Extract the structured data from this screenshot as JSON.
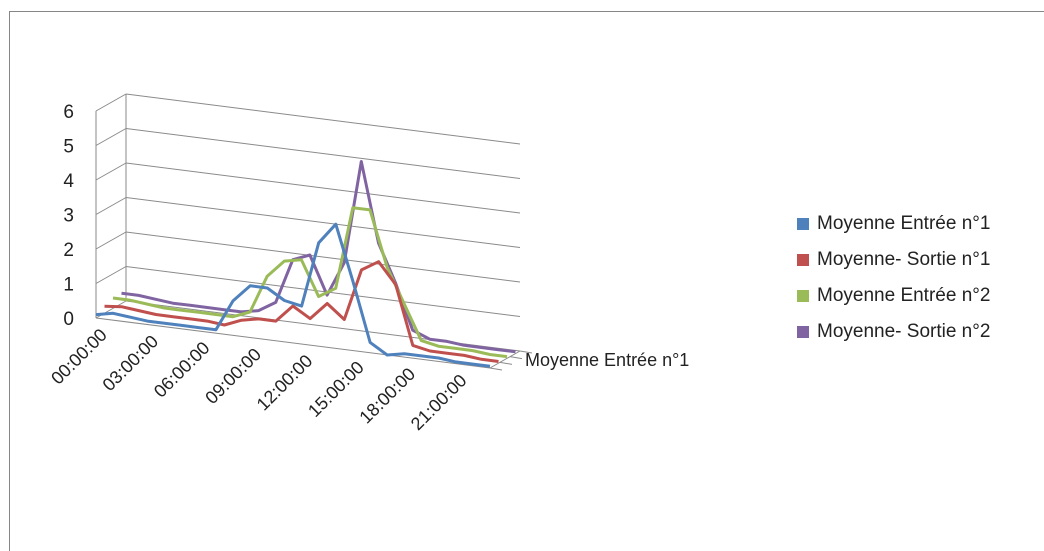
{
  "chart_data": {
    "type": "line",
    "title": "",
    "categories": [
      "00:00:00",
      "01:00:00",
      "02:00:00",
      "03:00:00",
      "04:00:00",
      "05:00:00",
      "06:00:00",
      "07:00:00",
      "08:00:00",
      "09:00:00",
      "10:00:00",
      "11:00:00",
      "12:00:00",
      "13:00:00",
      "14:00:00",
      "15:00:00",
      "16:00:00",
      "17:00:00",
      "18:00:00",
      "19:00:00",
      "20:00:00",
      "21:00:00",
      "22:00:00",
      "23:00:00"
    ],
    "x_tick_labels": [
      "00:00:00",
      "03:00:00",
      "06:00:00",
      "09:00:00",
      "12:00:00",
      "15:00:00",
      "18:00:00",
      "21:00:00"
    ],
    "y_ticks": [
      "0",
      "1",
      "2",
      "3",
      "4",
      "5",
      "6"
    ],
    "ylim": [
      0,
      6
    ],
    "depth_label": "Moyenne Entrée n°1",
    "grid": true,
    "legend_position": "right",
    "series": [
      {
        "name": "Moyenne Entrée n°1",
        "color": "#4F81BD",
        "values": [
          0.1,
          0.2,
          0.15,
          0.1,
          0.1,
          0.1,
          0.1,
          0.1,
          1.0,
          1.5,
          1.5,
          1.2,
          1.1,
          3.0,
          3.6,
          2.0,
          0.3,
          0.0,
          0.1,
          0.1,
          0.1,
          0.05,
          0.05,
          0.05
        ]
      },
      {
        "name": "Moyenne- Sortie n°1",
        "color": "#C0504D",
        "values": [
          0.2,
          0.25,
          0.2,
          0.15,
          0.15,
          0.15,
          0.15,
          0.1,
          0.3,
          0.4,
          0.4,
          0.9,
          0.6,
          1.1,
          0.7,
          2.2,
          2.5,
          1.9,
          0.2,
          0.1,
          0.1,
          0.1,
          0.05,
          0.05
        ]
      },
      {
        "name": "Moyenne Entrée n°2",
        "color": "#9BBB59",
        "values": [
          0.3,
          0.3,
          0.25,
          0.2,
          0.2,
          0.2,
          0.2,
          0.2,
          0.4,
          1.5,
          2.0,
          2.1,
          1.1,
          1.4,
          3.8,
          3.8,
          2.2,
          1.2,
          0.2,
          0.1,
          0.1,
          0.1,
          0.05,
          0.05
        ]
      },
      {
        "name": "Moyenne- Sortie n°2",
        "color": "#8064A2",
        "values": [
          0.3,
          0.3,
          0.25,
          0.2,
          0.2,
          0.2,
          0.2,
          0.2,
          0.3,
          0.6,
          1.9,
          2.1,
          1.0,
          2.0,
          5.0,
          2.7,
          1.6,
          0.3,
          0.1,
          0.1,
          0.05,
          0.05,
          0.05,
          0.05
        ]
      }
    ]
  }
}
